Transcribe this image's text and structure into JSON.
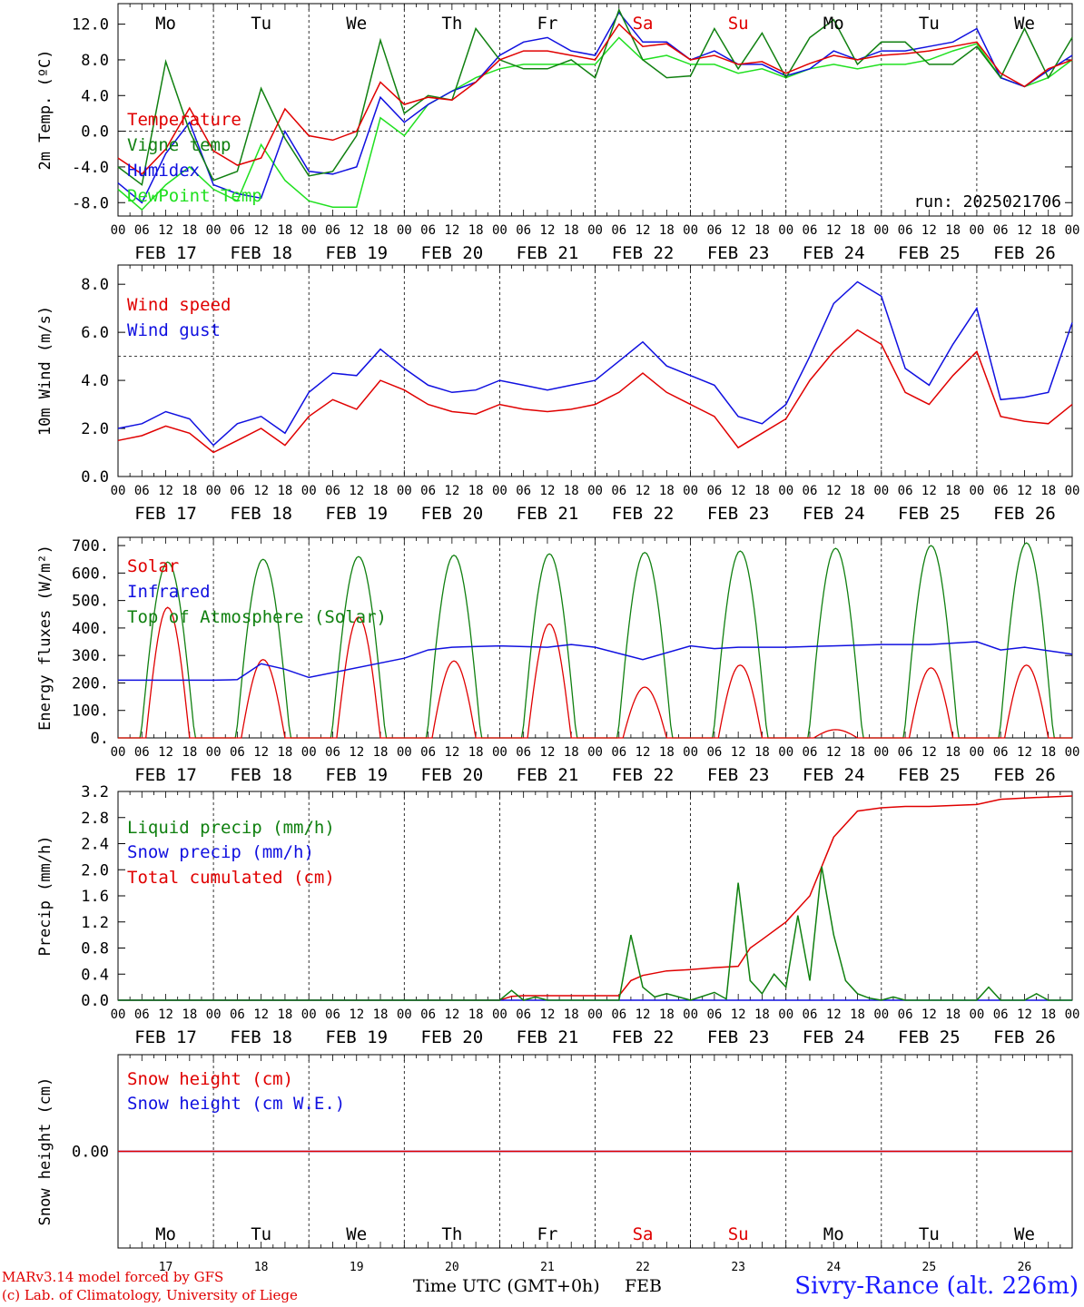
{
  "header": {
    "weekdays": [
      "Mo",
      "Tu",
      "We",
      "Th",
      "Fr",
      "Sa",
      "Su",
      "Mo",
      "Tu",
      "We"
    ],
    "weekend_days": [
      "Sa",
      "Su"
    ],
    "dates": [
      "FEB 17",
      "FEB 18",
      "FEB 19",
      "FEB 20",
      "FEB 21",
      "FEB 22",
      "FEB 23",
      "FEB 24",
      "FEB 25",
      "FEB 26"
    ],
    "hour_ticks": [
      "00",
      "06",
      "12",
      "18"
    ],
    "bottom_day_numbers": [
      "17",
      "18",
      "19",
      "20",
      "21",
      "22",
      "23",
      "24",
      "25",
      "26"
    ],
    "bottom_month": "FEB",
    "time_axis_label": "Time UTC (GMT+0h)"
  },
  "footer": {
    "credit_line1": "MARv3.14 model forced by GFS",
    "credit_line2": "(c) Lab. of Climatology, University of Liege",
    "station": "Sivry-Rance (alt. 226m)"
  },
  "colors": {
    "red": "#e00000",
    "green": "#108010",
    "blue": "#1010e0",
    "lightgreen": "#20e020",
    "weekend": "#e00000"
  },
  "chart_data": [
    {
      "type": "line",
      "ylabel": "2m Temp. (ºC)",
      "ylim": [
        -9.5,
        14.3
      ],
      "yticks": [
        12.0,
        8.0,
        4.0,
        0.0,
        -4.0,
        -8.0
      ],
      "ytick_labels": [
        "12.0",
        "8.0",
        "4.0",
        "0.0",
        "-4.0",
        "-8.0"
      ],
      "ref_line": 0.0,
      "run_label": "run: 2025021706",
      "x": [
        0,
        6,
        12,
        18,
        24,
        30,
        36,
        42,
        48,
        54,
        60,
        66,
        72,
        78,
        84,
        90,
        96,
        102,
        108,
        114,
        120,
        126,
        132,
        138,
        144,
        150,
        156,
        162,
        168,
        174,
        180,
        186,
        192,
        198,
        204,
        210,
        216,
        222,
        228,
        234,
        240
      ],
      "series": [
        {
          "name": "Temperature",
          "color": "red",
          "values": [
            -3,
            -4.8,
            -2,
            2.6,
            -2.2,
            -3.8,
            -3,
            2.5,
            -0.5,
            -1,
            0,
            5.5,
            3,
            3.8,
            3.5,
            5.5,
            8,
            9,
            9,
            8.5,
            8,
            12,
            9.5,
            9.8,
            8,
            8.5,
            7.5,
            7.8,
            6.5,
            7.6,
            8.5,
            8,
            8.5,
            8.7,
            9,
            9.5,
            10,
            6.5,
            5,
            7,
            8
          ]
        },
        {
          "name": "Vigne temp",
          "color": "green",
          "values": [
            -4,
            -6,
            7.8,
            0,
            -5.5,
            -4.5,
            4.8,
            -0.8,
            -5,
            -4.5,
            -0.5,
            10.2,
            2,
            4,
            3.5,
            11.5,
            8,
            7,
            7,
            8,
            6,
            13.6,
            8,
            6,
            6.2,
            11.5,
            7,
            11,
            6,
            10.5,
            12.5,
            7.5,
            10,
            10,
            7.5,
            7.5,
            9.5,
            6,
            11.5,
            6,
            10.5
          ]
        },
        {
          "name": "Humidex",
          "color": "blue",
          "values": [
            -5.8,
            -8,
            -2.5,
            1,
            -6,
            -7,
            -7.5,
            0,
            -4.5,
            -4.8,
            -4,
            3.8,
            1,
            3,
            4.5,
            5.5,
            8.5,
            10,
            10.5,
            9,
            8.5,
            13.3,
            10,
            10,
            8,
            9,
            7.5,
            7.5,
            6.2,
            7,
            9,
            8,
            9,
            9,
            9.5,
            10,
            11.5,
            6,
            5,
            6.8,
            8.5
          ]
        },
        {
          "name": "DewPoint Temp",
          "color": "lightgreen",
          "values": [
            -6.5,
            -8.8,
            -6,
            -4,
            -6.5,
            -7.8,
            -1.5,
            -5.5,
            -7.8,
            -8.5,
            -8.5,
            1.5,
            -0.5,
            3,
            4.5,
            6,
            7,
            7.5,
            7.5,
            7.5,
            7.5,
            10.5,
            8,
            8.5,
            7.5,
            7.5,
            6.5,
            7,
            6,
            7,
            7.5,
            7,
            7.5,
            7.5,
            8,
            9,
            9.8,
            6,
            5,
            6,
            8
          ]
        }
      ]
    },
    {
      "type": "line",
      "ylabel": "10m Wind (m/s)",
      "ylim": [
        0,
        8.8
      ],
      "yticks": [
        8.0,
        6.0,
        4.0,
        2.0,
        0.0
      ],
      "ytick_labels": [
        "8.0",
        "6.0",
        "4.0",
        "2.0",
        "0.0"
      ],
      "ref_line": 5.0,
      "x": [
        0,
        6,
        12,
        18,
        24,
        30,
        36,
        42,
        48,
        54,
        60,
        66,
        72,
        78,
        84,
        90,
        96,
        102,
        108,
        114,
        120,
        126,
        132,
        138,
        144,
        150,
        156,
        162,
        168,
        174,
        180,
        186,
        192,
        198,
        204,
        210,
        216,
        222,
        228,
        234,
        240
      ],
      "series": [
        {
          "name": "Wind speed",
          "color": "red",
          "values": [
            1.5,
            1.7,
            2.1,
            1.8,
            1,
            1.5,
            2,
            1.3,
            2.5,
            3.2,
            2.8,
            4,
            3.6,
            3,
            2.7,
            2.6,
            3,
            2.8,
            2.7,
            2.8,
            3,
            3.5,
            4.3,
            3.5,
            3,
            2.5,
            1.2,
            1.8,
            2.4,
            4,
            5.2,
            6.1,
            5.5,
            3.5,
            3,
            4.2,
            5.2,
            2.5,
            2.3,
            2.2,
            3
          ]
        },
        {
          "name": "Wind gust",
          "color": "blue",
          "values": [
            2,
            2.2,
            2.7,
            2.4,
            1.3,
            2.2,
            2.5,
            1.8,
            3.5,
            4.3,
            4.2,
            5.3,
            4.5,
            3.8,
            3.5,
            3.6,
            4,
            3.8,
            3.6,
            3.8,
            4,
            4.8,
            5.6,
            4.6,
            4.2,
            3.8,
            2.5,
            2.2,
            3,
            5,
            7.2,
            8.1,
            7.5,
            4.5,
            3.8,
            5.5,
            7,
            3.2,
            3.3,
            3.5,
            6.4
          ]
        }
      ]
    },
    {
      "type": "line",
      "ylabel": "Energy fluxes (W/m²)",
      "ylim": [
        0,
        730
      ],
      "yticks": [
        700,
        600,
        500,
        400,
        300,
        200,
        100,
        0
      ],
      "ytick_labels": [
        "700.",
        "600.",
        "500.",
        "400.",
        "300.",
        "200.",
        "100.",
        "0."
      ],
      "ref_line": null,
      "days_noon_peaks": {
        "Solar": [
          475,
          285,
          440,
          280,
          415,
          185,
          265,
          30,
          255,
          265
        ],
        "Top of Atmosphere (Solar)": [
          640,
          650,
          660,
          665,
          670,
          675,
          680,
          690,
          700,
          710
        ]
      },
      "series": [
        {
          "name": "Solar",
          "color": "red"
        },
        {
          "name": "Infrared",
          "color": "blue",
          "x": [
            0,
            24,
            30,
            36,
            42,
            48,
            72,
            78,
            84,
            96,
            108,
            114,
            120,
            132,
            144,
            150,
            156,
            168,
            180,
            192,
            204,
            216,
            222,
            228,
            240
          ],
          "values": [
            210,
            210,
            212,
            270,
            250,
            220,
            290,
            320,
            330,
            335,
            330,
            340,
            330,
            285,
            335,
            325,
            330,
            330,
            335,
            340,
            340,
            350,
            320,
            330,
            305
          ]
        },
        {
          "name": "Top of Atmosphere (Solar)",
          "color": "green"
        }
      ]
    },
    {
      "type": "line",
      "ylabel": "Precip (mm/h)",
      "ylim": [
        0,
        3.2
      ],
      "yticks": [
        3.2,
        2.8,
        2.4,
        2.0,
        1.6,
        1.2,
        0.8,
        0.4,
        0.0
      ],
      "ytick_labels": [
        "3.2",
        "2.8",
        "2.4",
        "2.0",
        "1.6",
        "1.2",
        "0.8",
        "0.4",
        "0.0"
      ],
      "ref_line": null,
      "series": [
        {
          "name": "Liquid precip (mm/h)",
          "color": "green",
          "x": [
            0,
            96,
            99,
            102,
            105,
            108,
            126,
            129,
            132,
            135,
            138,
            141,
            144,
            150,
            153,
            156,
            159,
            162,
            165,
            168,
            171,
            174,
            177,
            180,
            183,
            186,
            189,
            192,
            195,
            198,
            216,
            219,
            222,
            228,
            231,
            234,
            240
          ],
          "values": [
            0,
            0,
            0.15,
            0,
            0.05,
            0,
            0,
            1.0,
            0.2,
            0.05,
            0.1,
            0.05,
            0,
            0.12,
            0.02,
            1.8,
            0.3,
            0.1,
            0.4,
            0.2,
            1.3,
            0.3,
            2.05,
            1.0,
            0.3,
            0.1,
            0.03,
            0,
            0.05,
            0,
            0,
            0.2,
            0,
            0,
            0.1,
            0,
            0
          ]
        },
        {
          "name": "Snow precip (mm/h)",
          "color": "blue",
          "x": [
            0,
            240
          ],
          "values": [
            0,
            0
          ]
        },
        {
          "name": "Total cumulated (cm)",
          "color": "red",
          "x": [
            0,
            96,
            99,
            102,
            126,
            129,
            132,
            138,
            144,
            150,
            156,
            159,
            162,
            168,
            174,
            180,
            186,
            192,
            198,
            204,
            216,
            222,
            228,
            240
          ],
          "values": [
            0,
            0,
            0.06,
            0.07,
            0.07,
            0.3,
            0.38,
            0.45,
            0.47,
            0.5,
            0.52,
            0.8,
            0.93,
            1.2,
            1.6,
            2.5,
            2.9,
            2.95,
            2.97,
            2.97,
            3.0,
            3.08,
            3.1,
            3.13
          ]
        }
      ]
    },
    {
      "type": "line",
      "ylabel": "Snow height (cm)",
      "ylim": [
        -1,
        1
      ],
      "yticks": [
        0.0
      ],
      "ytick_labels": [
        "0.00"
      ],
      "ref_line": null,
      "series": [
        {
          "name": "Snow height (cm)",
          "color": "red",
          "x": [
            0,
            240
          ],
          "values": [
            0,
            0
          ]
        },
        {
          "name": "Snow height (cm W.E.)",
          "color": "blue",
          "x": [
            0,
            240
          ],
          "values": [
            0,
            0
          ]
        }
      ]
    }
  ]
}
